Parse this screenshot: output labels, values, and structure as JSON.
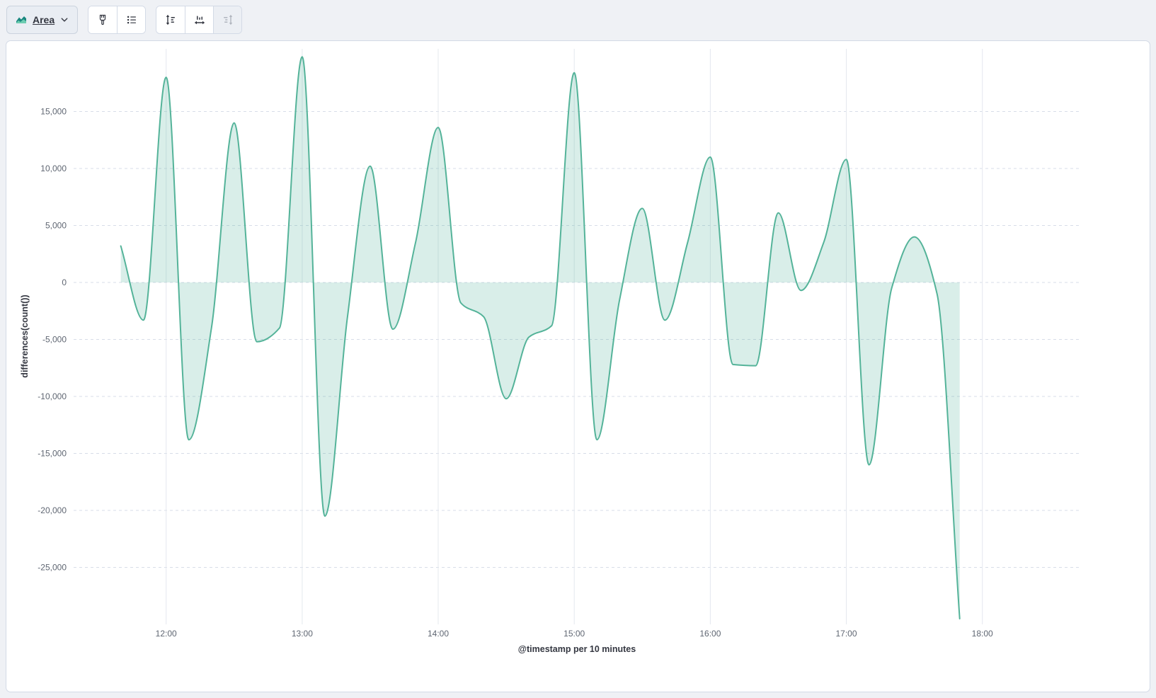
{
  "toolbar": {
    "chart_type_button": {
      "label": "Area"
    }
  },
  "chart_data": {
    "type": "area",
    "title": "",
    "xlabel": "@timestamp per 10 minutes",
    "ylabel": "differences(count())",
    "legend": "none",
    "grid": true,
    "line_color": "#54b399",
    "fill_opacity": 0.22,
    "xlim_hours": [
      11.32,
      18.73
    ],
    "ylim": [
      -30000,
      20500
    ],
    "x_ticks": [
      "12:00",
      "13:00",
      "14:00",
      "15:00",
      "16:00",
      "17:00",
      "18:00"
    ],
    "y_ticks": [
      15000,
      10000,
      5000,
      0,
      -5000,
      -10000,
      -15000,
      -20000,
      -25000
    ],
    "points": [
      {
        "t": "11:40",
        "v": 3200
      },
      {
        "t": "11:50",
        "v": -3300
      },
      {
        "t": "12:00",
        "v": 18000
      },
      {
        "t": "12:10",
        "v": -13800
      },
      {
        "t": "12:20",
        "v": -4000
      },
      {
        "t": "12:30",
        "v": 14000
      },
      {
        "t": "12:40",
        "v": -5200
      },
      {
        "t": "12:50",
        "v": -4000
      },
      {
        "t": "13:00",
        "v": 19800
      },
      {
        "t": "13:10",
        "v": -20500
      },
      {
        "t": "13:20",
        "v": -3000
      },
      {
        "t": "13:30",
        "v": 10200
      },
      {
        "t": "13:40",
        "v": -4100
      },
      {
        "t": "13:50",
        "v": 3500
      },
      {
        "t": "14:00",
        "v": 13600
      },
      {
        "t": "14:10",
        "v": -1800
      },
      {
        "t": "14:20",
        "v": -3000
      },
      {
        "t": "14:30",
        "v": -10200
      },
      {
        "t": "14:40",
        "v": -4800
      },
      {
        "t": "14:50",
        "v": -3800
      },
      {
        "t": "15:00",
        "v": 18400
      },
      {
        "t": "15:10",
        "v": -13800
      },
      {
        "t": "15:20",
        "v": -1500
      },
      {
        "t": "15:30",
        "v": 6500
      },
      {
        "t": "15:40",
        "v": -3300
      },
      {
        "t": "15:50",
        "v": 3500
      },
      {
        "t": "16:00",
        "v": 11000
      },
      {
        "t": "16:10",
        "v": -7200
      },
      {
        "t": "16:20",
        "v": -7300
      },
      {
        "t": "16:30",
        "v": 6100
      },
      {
        "t": "16:40",
        "v": -700
      },
      {
        "t": "16:50",
        "v": 3500
      },
      {
        "t": "17:00",
        "v": 10800
      },
      {
        "t": "17:10",
        "v": -16000
      },
      {
        "t": "17:20",
        "v": -500
      },
      {
        "t": "17:30",
        "v": 4000
      },
      {
        "t": "17:40",
        "v": -1000
      },
      {
        "t": "17:50",
        "v": -29500
      }
    ]
  }
}
